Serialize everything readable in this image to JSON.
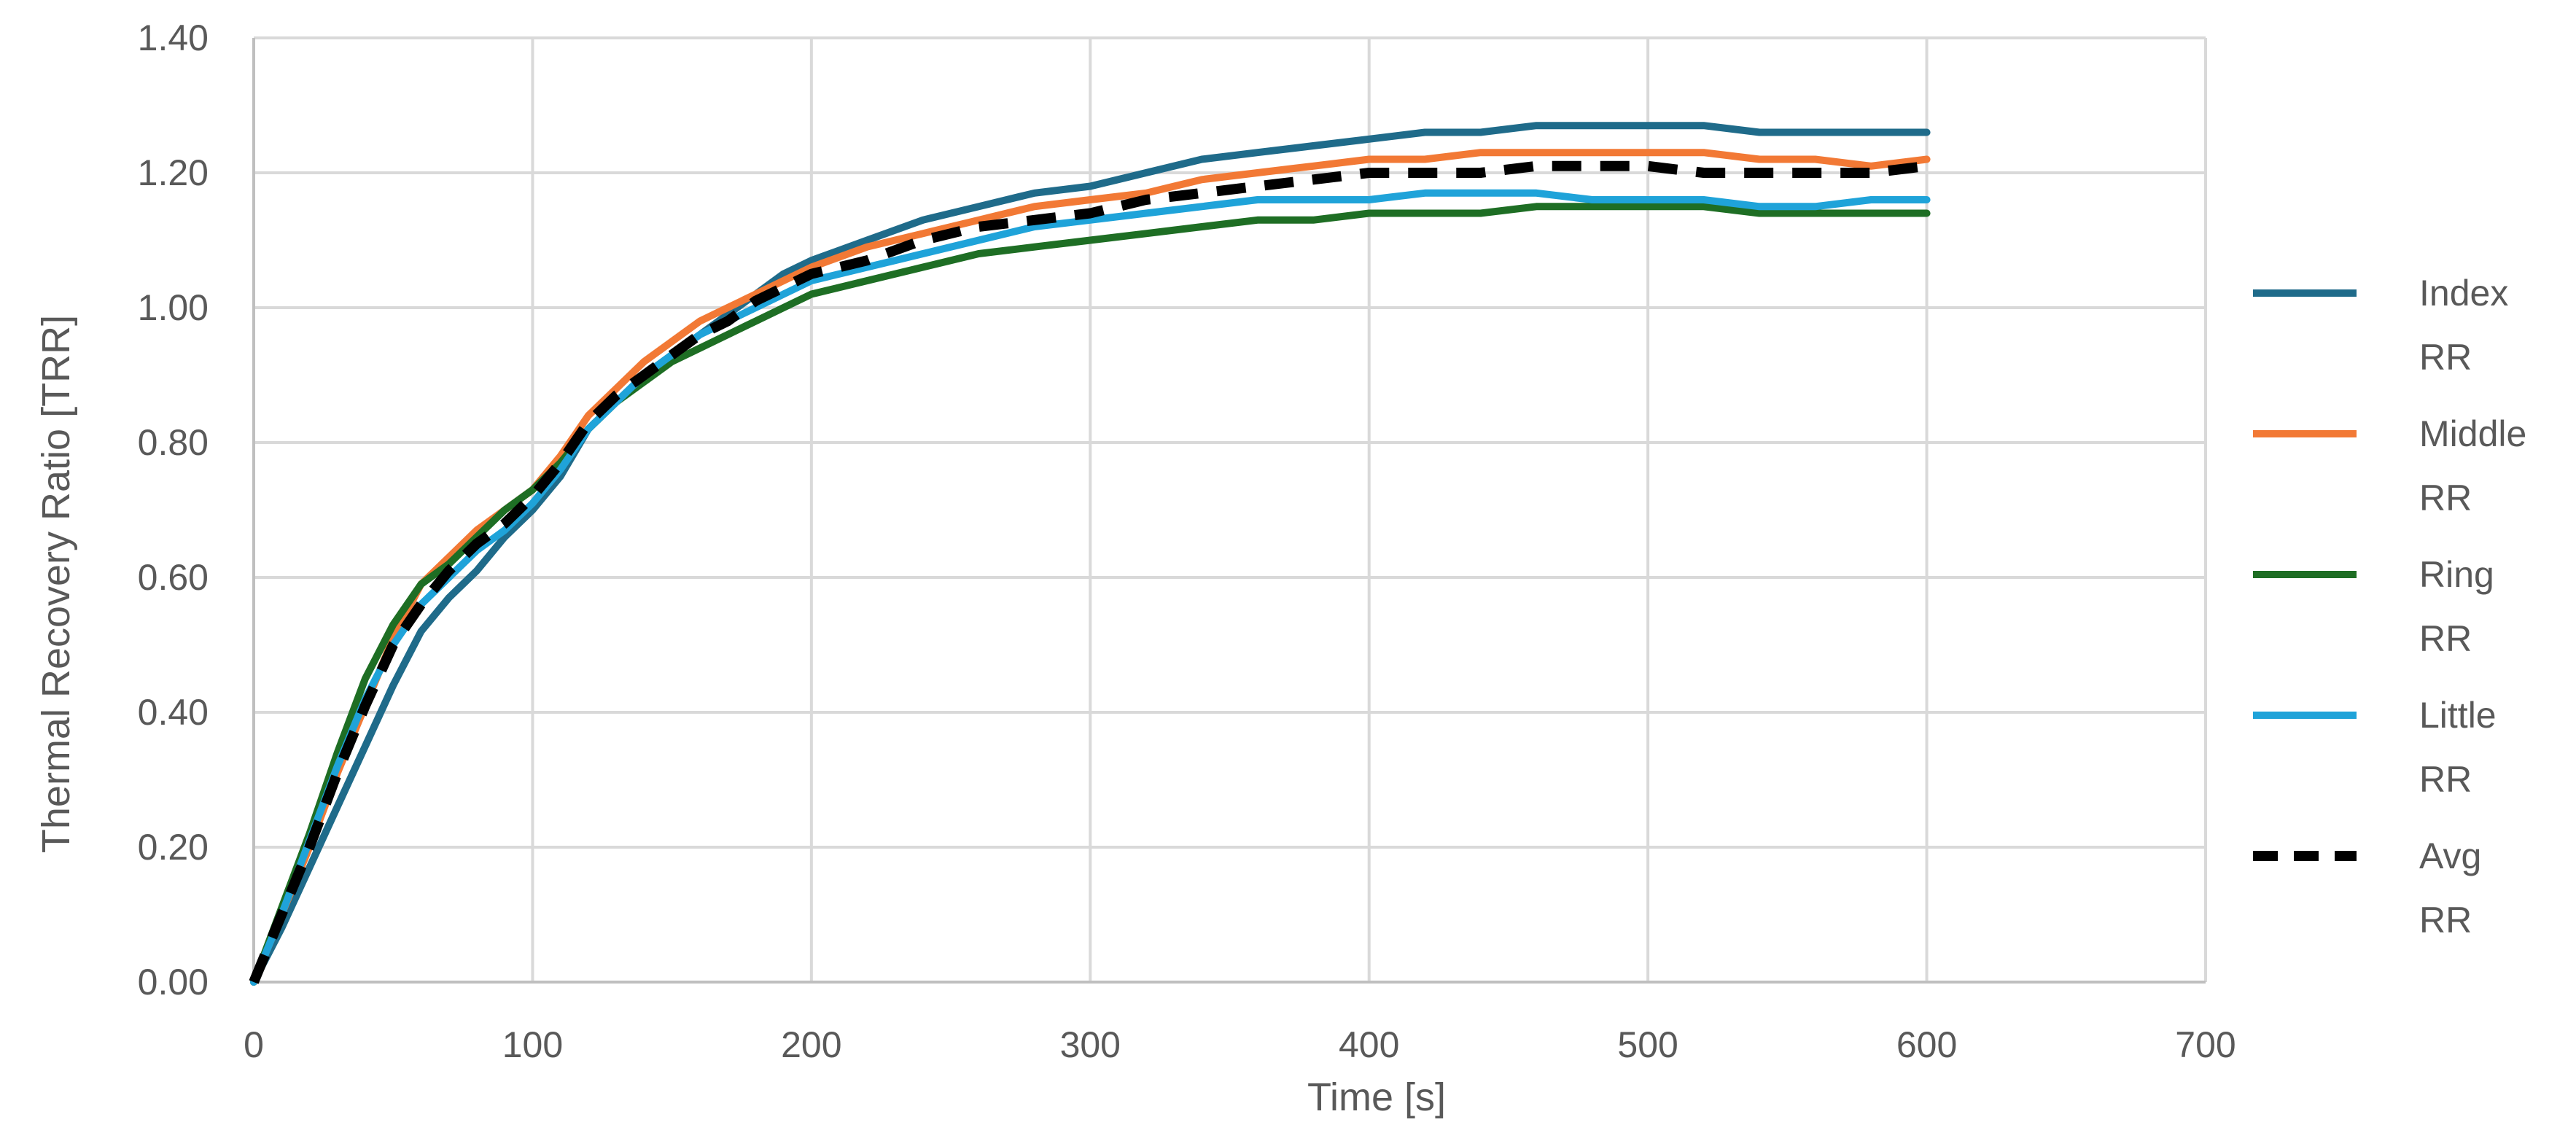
{
  "chart_data": {
    "type": "line",
    "title": "",
    "xlabel": "Time [s]",
    "ylabel": "Thermal Recovery Ratio [TRR]",
    "xlim": [
      0,
      700
    ],
    "ylim": [
      0,
      1.4
    ],
    "x_ticks": [
      "0",
      "100",
      "200",
      "300",
      "400",
      "500",
      "600",
      "700"
    ],
    "y_ticks": [
      "0.00",
      "0.20",
      "0.40",
      "0.60",
      "0.80",
      "1.00",
      "1.20",
      "1.40"
    ],
    "grid": true,
    "legend_position": "right",
    "series": [
      {
        "name": "Index RR",
        "legend_lines": [
          "Index",
          "RR"
        ],
        "color": "#1F6B8A",
        "dash": "solid",
        "points": [
          [
            0,
            0
          ],
          [
            10,
            0.08
          ],
          [
            20,
            0.17
          ],
          [
            30,
            0.26
          ],
          [
            40,
            0.35
          ],
          [
            50,
            0.44
          ],
          [
            60,
            0.52
          ],
          [
            70,
            0.57
          ],
          [
            80,
            0.61
          ],
          [
            90,
            0.66
          ],
          [
            100,
            0.7
          ],
          [
            110,
            0.75
          ],
          [
            120,
            0.82
          ],
          [
            130,
            0.86
          ],
          [
            140,
            0.9
          ],
          [
            150,
            0.93
          ],
          [
            160,
            0.96
          ],
          [
            170,
            0.99
          ],
          [
            180,
            1.02
          ],
          [
            190,
            1.05
          ],
          [
            200,
            1.07
          ],
          [
            220,
            1.1
          ],
          [
            240,
            1.13
          ],
          [
            260,
            1.15
          ],
          [
            280,
            1.17
          ],
          [
            300,
            1.18
          ],
          [
            320,
            1.2
          ],
          [
            340,
            1.22
          ],
          [
            360,
            1.23
          ],
          [
            380,
            1.24
          ],
          [
            400,
            1.25
          ],
          [
            420,
            1.26
          ],
          [
            440,
            1.26
          ],
          [
            460,
            1.27
          ],
          [
            480,
            1.27
          ],
          [
            500,
            1.27
          ],
          [
            520,
            1.27
          ],
          [
            540,
            1.26
          ],
          [
            560,
            1.26
          ],
          [
            580,
            1.26
          ],
          [
            600,
            1.26
          ]
        ]
      },
      {
        "name": "Middle RR",
        "legend_lines": [
          "Middle",
          "RR"
        ],
        "color": "#F27935",
        "dash": "solid",
        "points": [
          [
            0,
            0
          ],
          [
            10,
            0.1
          ],
          [
            20,
            0.2
          ],
          [
            30,
            0.31
          ],
          [
            40,
            0.41
          ],
          [
            50,
            0.51
          ],
          [
            60,
            0.59
          ],
          [
            70,
            0.63
          ],
          [
            80,
            0.67
          ],
          [
            90,
            0.7
          ],
          [
            100,
            0.73
          ],
          [
            110,
            0.78
          ],
          [
            120,
            0.84
          ],
          [
            130,
            0.88
          ],
          [
            140,
            0.92
          ],
          [
            150,
            0.95
          ],
          [
            160,
            0.98
          ],
          [
            170,
            1.0
          ],
          [
            180,
            1.02
          ],
          [
            190,
            1.04
          ],
          [
            200,
            1.06
          ],
          [
            220,
            1.09
          ],
          [
            240,
            1.11
          ],
          [
            260,
            1.13
          ],
          [
            280,
            1.15
          ],
          [
            300,
            1.16
          ],
          [
            320,
            1.17
          ],
          [
            340,
            1.19
          ],
          [
            360,
            1.2
          ],
          [
            380,
            1.21
          ],
          [
            400,
            1.22
          ],
          [
            420,
            1.22
          ],
          [
            440,
            1.23
          ],
          [
            460,
            1.23
          ],
          [
            480,
            1.23
          ],
          [
            500,
            1.23
          ],
          [
            520,
            1.23
          ],
          [
            540,
            1.22
          ],
          [
            560,
            1.22
          ],
          [
            580,
            1.21
          ],
          [
            600,
            1.22
          ]
        ]
      },
      {
        "name": "Ring RR",
        "legend_lines": [
          "Ring",
          "RR"
        ],
        "color": "#1E6E24",
        "dash": "solid",
        "points": [
          [
            0,
            0
          ],
          [
            10,
            0.11
          ],
          [
            20,
            0.22
          ],
          [
            30,
            0.34
          ],
          [
            40,
            0.45
          ],
          [
            50,
            0.53
          ],
          [
            60,
            0.59
          ],
          [
            70,
            0.62
          ],
          [
            80,
            0.66
          ],
          [
            90,
            0.7
          ],
          [
            100,
            0.73
          ],
          [
            110,
            0.77
          ],
          [
            120,
            0.82
          ],
          [
            130,
            0.86
          ],
          [
            140,
            0.89
          ],
          [
            150,
            0.92
          ],
          [
            160,
            0.94
          ],
          [
            170,
            0.96
          ],
          [
            180,
            0.98
          ],
          [
            190,
            1.0
          ],
          [
            200,
            1.02
          ],
          [
            220,
            1.04
          ],
          [
            240,
            1.06
          ],
          [
            260,
            1.08
          ],
          [
            280,
            1.09
          ],
          [
            300,
            1.1
          ],
          [
            320,
            1.11
          ],
          [
            340,
            1.12
          ],
          [
            360,
            1.13
          ],
          [
            380,
            1.13
          ],
          [
            400,
            1.14
          ],
          [
            420,
            1.14
          ],
          [
            440,
            1.14
          ],
          [
            460,
            1.15
          ],
          [
            480,
            1.15
          ],
          [
            500,
            1.15
          ],
          [
            520,
            1.15
          ],
          [
            540,
            1.14
          ],
          [
            560,
            1.14
          ],
          [
            580,
            1.14
          ],
          [
            600,
            1.14
          ]
        ]
      },
      {
        "name": "Little RR",
        "legend_lines": [
          "Little",
          "RR"
        ],
        "color": "#1FA3D9",
        "dash": "solid",
        "points": [
          [
            0,
            0
          ],
          [
            10,
            0.1
          ],
          [
            20,
            0.21
          ],
          [
            30,
            0.32
          ],
          [
            40,
            0.42
          ],
          [
            50,
            0.5
          ],
          [
            60,
            0.56
          ],
          [
            70,
            0.6
          ],
          [
            80,
            0.64
          ],
          [
            90,
            0.67
          ],
          [
            100,
            0.71
          ],
          [
            110,
            0.76
          ],
          [
            120,
            0.82
          ],
          [
            130,
            0.86
          ],
          [
            140,
            0.9
          ],
          [
            150,
            0.93
          ],
          [
            160,
            0.96
          ],
          [
            170,
            0.98
          ],
          [
            180,
            1.0
          ],
          [
            190,
            1.02
          ],
          [
            200,
            1.04
          ],
          [
            220,
            1.06
          ],
          [
            240,
            1.08
          ],
          [
            260,
            1.1
          ],
          [
            280,
            1.12
          ],
          [
            300,
            1.13
          ],
          [
            320,
            1.14
          ],
          [
            340,
            1.15
          ],
          [
            360,
            1.16
          ],
          [
            380,
            1.16
          ],
          [
            400,
            1.16
          ],
          [
            420,
            1.17
          ],
          [
            440,
            1.17
          ],
          [
            460,
            1.17
          ],
          [
            480,
            1.16
          ],
          [
            500,
            1.16
          ],
          [
            520,
            1.16
          ],
          [
            540,
            1.15
          ],
          [
            560,
            1.15
          ],
          [
            580,
            1.16
          ],
          [
            600,
            1.16
          ]
        ]
      },
      {
        "name": "Avg RR",
        "legend_lines": [
          "Avg",
          "RR"
        ],
        "color": "#000000",
        "dash": "dashed",
        "points": [
          [
            0,
            0
          ],
          [
            10,
            0.1
          ],
          [
            20,
            0.2
          ],
          [
            30,
            0.31
          ],
          [
            40,
            0.41
          ],
          [
            50,
            0.5
          ],
          [
            60,
            0.56
          ],
          [
            70,
            0.61
          ],
          [
            80,
            0.65
          ],
          [
            90,
            0.68
          ],
          [
            100,
            0.72
          ],
          [
            110,
            0.77
          ],
          [
            120,
            0.83
          ],
          [
            130,
            0.87
          ],
          [
            140,
            0.9
          ],
          [
            150,
            0.93
          ],
          [
            160,
            0.96
          ],
          [
            170,
            0.98
          ],
          [
            180,
            1.01
          ],
          [
            190,
            1.03
          ],
          [
            200,
            1.05
          ],
          [
            220,
            1.07
          ],
          [
            240,
            1.1
          ],
          [
            260,
            1.12
          ],
          [
            280,
            1.13
          ],
          [
            300,
            1.14
          ],
          [
            320,
            1.16
          ],
          [
            340,
            1.17
          ],
          [
            360,
            1.18
          ],
          [
            380,
            1.19
          ],
          [
            400,
            1.2
          ],
          [
            420,
            1.2
          ],
          [
            440,
            1.2
          ],
          [
            460,
            1.21
          ],
          [
            480,
            1.21
          ],
          [
            500,
            1.21
          ],
          [
            520,
            1.2
          ],
          [
            540,
            1.2
          ],
          [
            560,
            1.2
          ],
          [
            580,
            1.2
          ],
          [
            600,
            1.21
          ]
        ]
      }
    ]
  }
}
